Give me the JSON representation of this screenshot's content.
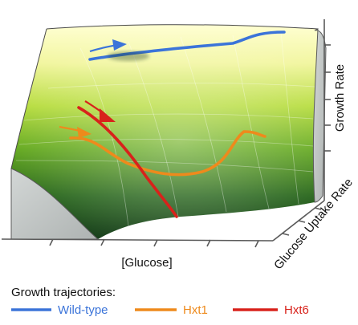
{
  "axes": {
    "x_label": "[Glucose]",
    "y_label": "Growth Rate",
    "z_label": "Glucose Uptake Rate"
  },
  "legend": {
    "title": "Growth trajectories:",
    "items": [
      {
        "label": "Wild-type",
        "color": "#3b74d9"
      },
      {
        "label": "Hxt1",
        "color": "#ee8a1c"
      },
      {
        "label": "Hxt6",
        "color": "#d8221b"
      }
    ]
  },
  "colors": {
    "surface_top": "#ffffc8",
    "surface_mid": "#7fc21e",
    "surface_bottom": "#0d3a12",
    "side_face": "#c7cccb",
    "axis": "#5a5a5a"
  }
}
